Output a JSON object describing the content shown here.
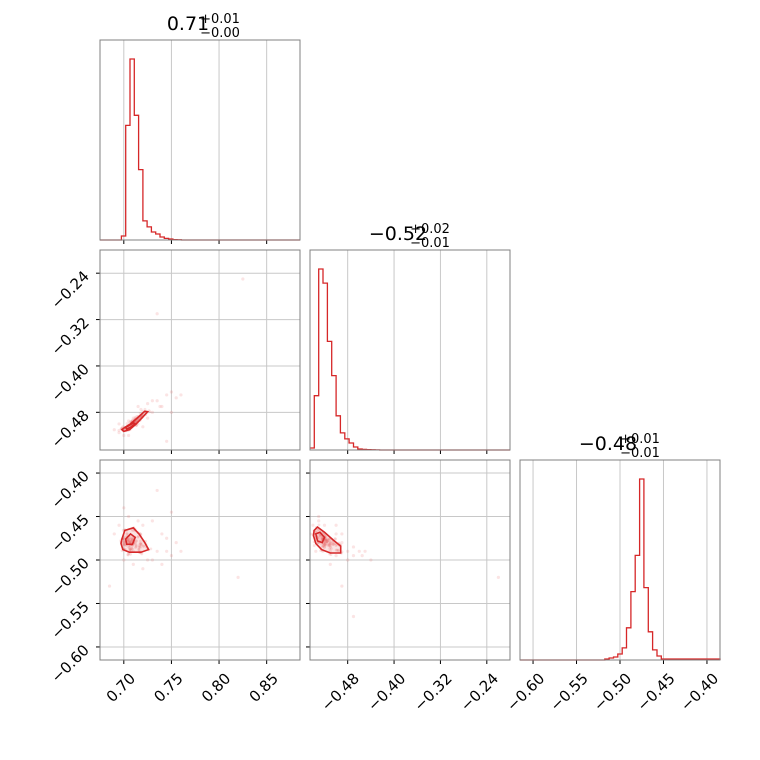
{
  "chart_data": {
    "type": "corner",
    "color": "#d62728",
    "parameters": [
      {
        "title": {
          "median": "0.71",
          "upper": "+0.01",
          "lower": "−0.00"
        },
        "range": [
          0.675,
          0.885
        ],
        "ticks": [
          0.7,
          0.75,
          0.8,
          0.85
        ],
        "tick_labels": [
          "0.70",
          "0.75",
          "0.80",
          "0.85"
        ],
        "hist": {
          "edges": [
            0.675,
            0.6795,
            0.684,
            0.6885,
            0.693,
            0.6975,
            0.702,
            0.7065,
            0.711,
            0.7155,
            0.72,
            0.7245,
            0.729,
            0.7335,
            0.738,
            0.7425,
            0.747,
            0.7515,
            0.756,
            0.7605,
            0.765,
            0.885
          ],
          "counts": [
            0,
            0,
            0,
            0,
            0,
            0.02,
            0.57,
            0.9,
            0.62,
            0.35,
            0.095,
            0.065,
            0.04,
            0.03,
            0.015,
            0.008,
            0.005,
            0.002,
            0.001,
            0,
            0
          ]
        }
      },
      {
        "title": {
          "median": "−0.52",
          "upper": "+0.02",
          "lower": "−0.01"
        },
        "range": [
          -0.545,
          -0.2
        ],
        "ticks": [
          -0.48,
          -0.4,
          -0.32,
          -0.24
        ],
        "tick_labels": [
          "−0.48",
          "−0.40",
          "−0.32",
          "−0.24"
        ],
        "hist": {
          "edges": [
            -0.545,
            -0.5375,
            -0.53,
            -0.5225,
            -0.515,
            -0.5075,
            -0.5,
            -0.4925,
            -0.485,
            -0.4775,
            -0.47,
            -0.4625,
            -0.455,
            -0.4475,
            -0.44,
            -0.4325,
            -0.425,
            -0.2
          ],
          "counts": [
            0.01,
            0.27,
            0.9,
            0.83,
            0.54,
            0.37,
            0.17,
            0.085,
            0.055,
            0.035,
            0.015,
            0.005,
            0.003,
            0.002,
            0.001,
            0.0005,
            0
          ]
        }
      },
      {
        "title": {
          "median": "−0.48",
          "upper": "+0.01",
          "lower": "−0.01"
        },
        "range": [
          -0.615,
          -0.385
        ],
        "ticks": [
          -0.6,
          -0.55,
          -0.5,
          -0.45,
          -0.4
        ],
        "tick_labels": [
          "−0.60",
          "−0.55",
          "−0.50",
          "−0.45",
          "−0.40"
        ],
        "hist": {
          "edges": [
            -0.615,
            -0.5175,
            -0.5125,
            -0.5075,
            -0.5025,
            -0.4975,
            -0.4925,
            -0.4875,
            -0.4825,
            -0.4775,
            -0.4725,
            -0.4675,
            -0.4625,
            -0.4575,
            -0.4525,
            -0.385
          ],
          "counts": [
            0,
            0.005,
            0.01,
            0.015,
            0.03,
            0.06,
            0.16,
            0.34,
            0.52,
            0.9,
            0.36,
            0.14,
            0.05,
            0.02,
            0.005,
            0
          ]
        }
      }
    ],
    "contours": {
      "1,0": [
        [
          [
            0.7,
            -0.513
          ],
          [
            0.706,
            -0.51
          ],
          [
            0.713,
            -0.5
          ],
          [
            0.72,
            -0.488
          ],
          [
            0.725,
            -0.479
          ],
          [
            0.722,
            -0.478
          ],
          [
            0.714,
            -0.49
          ],
          [
            0.707,
            -0.5
          ],
          [
            0.701,
            -0.506
          ],
          [
            0.698,
            -0.51
          ]
        ],
        [
          [
            0.703,
            -0.509
          ],
          [
            0.708,
            -0.505
          ],
          [
            0.712,
            -0.5
          ],
          [
            0.71,
            -0.498
          ],
          [
            0.705,
            -0.503
          ],
          [
            0.702,
            -0.506
          ]
        ]
      ],
      "2,0": [
        [
          [
            0.698,
            -0.476
          ],
          [
            0.701,
            -0.466
          ],
          [
            0.71,
            -0.463
          ],
          [
            0.716,
            -0.47
          ],
          [
            0.722,
            -0.48
          ],
          [
            0.726,
            -0.488
          ],
          [
            0.718,
            -0.491
          ],
          [
            0.706,
            -0.491
          ],
          [
            0.699,
            -0.488
          ],
          [
            0.697,
            -0.481
          ]
        ],
        [
          [
            0.702,
            -0.476
          ],
          [
            0.707,
            -0.47
          ],
          [
            0.712,
            -0.474
          ],
          [
            0.709,
            -0.482
          ],
          [
            0.703,
            -0.482
          ]
        ]
      ],
      "2,1": [
        [
          [
            -0.538,
            -0.466
          ],
          [
            -0.532,
            -0.462
          ],
          [
            -0.52,
            -0.468
          ],
          [
            -0.505,
            -0.477
          ],
          [
            -0.492,
            -0.484
          ],
          [
            -0.492,
            -0.492
          ],
          [
            -0.51,
            -0.492
          ],
          [
            -0.525,
            -0.488
          ],
          [
            -0.535,
            -0.481
          ],
          [
            -0.539,
            -0.472
          ]
        ],
        [
          [
            -0.535,
            -0.47
          ],
          [
            -0.528,
            -0.468
          ],
          [
            -0.52,
            -0.474
          ],
          [
            -0.524,
            -0.48
          ],
          [
            -0.532,
            -0.478
          ]
        ]
      ]
    },
    "scatter": {
      "1,0": [
        [
          0.69,
          -0.51
        ],
        [
          0.695,
          -0.5
        ],
        [
          0.715,
          -0.47
        ],
        [
          0.73,
          -0.46
        ],
        [
          0.735,
          -0.46
        ],
        [
          0.745,
          -0.45
        ],
        [
          0.75,
          -0.445
        ],
        [
          0.74,
          -0.47
        ],
        [
          0.7,
          -0.52
        ],
        [
          0.705,
          -0.52
        ],
        [
          0.725,
          -0.49
        ],
        [
          0.73,
          -0.48
        ],
        [
          0.71,
          -0.49
        ],
        [
          0.75,
          -0.48
        ],
        [
          0.745,
          -0.53
        ],
        [
          0.695,
          -0.515
        ],
        [
          0.72,
          -0.505
        ],
        [
          0.738,
          -0.47
        ],
        [
          0.725,
          -0.465
        ],
        [
          0.755,
          -0.455
        ],
        [
          0.825,
          -0.25
        ],
        [
          0.735,
          -0.31
        ],
        [
          0.76,
          -0.45
        ],
        [
          0.705,
          -0.495
        ],
        [
          0.718,
          -0.475
        ]
      ],
      "2,0": [
        [
          0.69,
          -0.47
        ],
        [
          0.72,
          -0.46
        ],
        [
          0.73,
          -0.455
        ],
        [
          0.75,
          -0.445
        ],
        [
          0.74,
          -0.47
        ],
        [
          0.735,
          -0.49
        ],
        [
          0.745,
          -0.49
        ],
        [
          0.75,
          -0.495
        ],
        [
          0.725,
          -0.5
        ],
        [
          0.71,
          -0.505
        ],
        [
          0.7,
          -0.5
        ],
        [
          0.695,
          -0.46
        ],
        [
          0.705,
          -0.45
        ],
        [
          0.715,
          -0.455
        ],
        [
          0.76,
          -0.49
        ],
        [
          0.755,
          -0.48
        ],
        [
          0.73,
          -0.5
        ],
        [
          0.74,
          -0.505
        ],
        [
          0.72,
          -0.51
        ],
        [
          0.82,
          -0.52
        ],
        [
          0.685,
          -0.53
        ],
        [
          0.735,
          -0.42
        ],
        [
          0.7,
          -0.44
        ],
        [
          0.745,
          -0.475
        ],
        [
          0.71,
          -0.49
        ]
      ],
      "2,1": [
        [
          -0.54,
          -0.46
        ],
        [
          -0.53,
          -0.455
        ],
        [
          -0.52,
          -0.46
        ],
        [
          -0.5,
          -0.47
        ],
        [
          -0.49,
          -0.48
        ],
        [
          -0.48,
          -0.49
        ],
        [
          -0.47,
          -0.495
        ],
        [
          -0.46,
          -0.49
        ],
        [
          -0.48,
          -0.5
        ],
        [
          -0.5,
          -0.495
        ],
        [
          -0.51,
          -0.49
        ],
        [
          -0.52,
          -0.485
        ],
        [
          -0.53,
          -0.48
        ],
        [
          -0.535,
          -0.49
        ],
        [
          -0.49,
          -0.47
        ],
        [
          -0.47,
          -0.485
        ],
        [
          -0.455,
          -0.495
        ],
        [
          -0.5,
          -0.46
        ],
        [
          -0.45,
          -0.49
        ],
        [
          -0.51,
          -0.505
        ],
        [
          -0.49,
          -0.53
        ],
        [
          -0.22,
          -0.52
        ],
        [
          -0.47,
          -0.565
        ],
        [
          -0.53,
          -0.45
        ],
        [
          -0.44,
          -0.5
        ]
      ]
    }
  }
}
